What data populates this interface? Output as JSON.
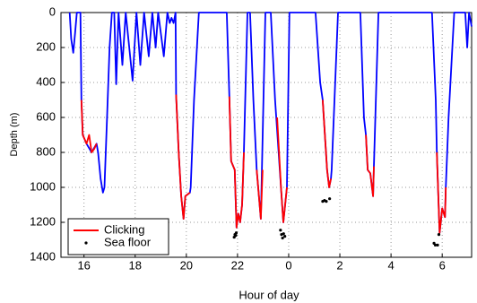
{
  "chart_data": {
    "type": "line",
    "x_label": "Hour of day",
    "y_label": "Depth (m)",
    "xlim": [
      15.1,
      31.15
    ],
    "xticks": [
      16,
      18,
      20,
      22,
      {
        "value": 24,
        "label": "0"
      },
      {
        "value": 26,
        "label": "2"
      },
      {
        "value": 28,
        "label": "4"
      },
      {
        "value": 30,
        "label": "6"
      }
    ],
    "ylim": [
      0,
      1400
    ],
    "yticks": [
      0,
      200,
      400,
      600,
      800,
      1000,
      1200,
      1400
    ],
    "y_inverted": true,
    "grid": true,
    "legend": "lower left",
    "series": [
      {
        "color": "#0000ff",
        "x": [
          15.44,
          15.5,
          15.58,
          15.65,
          15.72,
          15.86,
          15.9,
          15.95,
          16.1,
          16.3,
          16.49,
          16.55,
          16.65,
          16.74,
          16.8,
          16.9,
          17.0,
          17.09,
          17.18,
          17.26,
          17.35,
          17.5,
          17.63,
          17.9,
          18.05,
          18.2,
          18.35,
          18.53,
          18.67,
          18.8,
          18.9,
          19.12,
          19.26,
          19.35,
          19.42,
          19.5,
          19.58,
          19.6,
          19.7,
          19.8,
          19.89,
          19.96,
          20.14,
          20.17,
          20.3,
          20.49,
          21.58,
          21.68,
          21.75,
          21.89,
          21.96,
          22.03,
          22.1,
          22.18,
          22.25,
          22.39,
          22.49,
          22.62,
          22.75,
          22.91,
          23.0,
          23.09,
          23.3,
          23.47,
          23.79,
          23.93,
          24.03,
          25.05,
          25.23,
          25.33,
          25.5,
          25.58,
          25.65,
          25.68,
          25.93,
          26.8,
          26.94,
          27.02,
          27.09,
          27.19,
          27.3,
          27.33,
          27.51,
          29.6,
          29.75,
          29.79,
          29.86,
          29.9,
          30.0,
          30.11,
          30.14,
          30.25,
          30.47,
          30.9,
          30.98,
          31.05,
          31.15
        ],
        "values": [
          0,
          150,
          230,
          120,
          0,
          0,
          500,
          700,
          750,
          800,
          750,
          800,
          950,
          1030,
          1000,
          600,
          200,
          0,
          0,
          410,
          0,
          300,
          0,
          390,
          0,
          300,
          0,
          250,
          0,
          200,
          0,
          250,
          0,
          60,
          30,
          60,
          0,
          470,
          800,
          1050,
          1180,
          1050,
          1030,
          1000,
          500,
          0,
          0,
          480,
          850,
          900,
          1230,
          1150,
          1200,
          1100,
          800,
          0,
          0,
          500,
          900,
          1180,
          600,
          0,
          0,
          500,
          1200,
          1000,
          0,
          0,
          400,
          500,
          900,
          1000,
          950,
          900,
          0,
          0,
          600,
          700,
          900,
          920,
          1050,
          880,
          0,
          0,
          500,
          800,
          1100,
          1260,
          1120,
          1170,
          1000,
          600,
          0,
          0,
          200,
          0,
          80
        ]
      },
      {
        "name": "Clicking",
        "color": "#ff0000",
        "x": [
          15.9,
          15.95,
          16.1,
          16.2,
          16.3,
          16.4,
          16.49,
          null,
          19.6,
          19.7,
          19.8,
          19.89,
          19.96,
          20.14,
          null,
          21.68,
          21.75,
          21.89,
          21.96,
          22.03,
          22.1,
          22.18,
          22.25,
          null,
          22.75,
          22.91,
          22.98,
          null,
          23.55,
          23.7,
          23.79,
          23.86,
          23.93,
          null,
          25.33,
          25.5,
          25.58,
          25.65,
          null,
          27.02,
          27.09,
          27.19,
          27.3,
          27.33,
          null,
          29.79,
          29.86,
          29.9,
          30.0,
          30.11,
          30.14
        ],
        "values": [
          500,
          700,
          750,
          700,
          800,
          780,
          750,
          null,
          470,
          800,
          1050,
          1180,
          1050,
          1030,
          null,
          480,
          850,
          900,
          1230,
          1150,
          1200,
          1100,
          800,
          null,
          900,
          1180,
          900,
          null,
          600,
          1000,
          1200,
          1100,
          1000,
          null,
          500,
          900,
          1000,
          950,
          null,
          700,
          900,
          920,
          1050,
          880,
          null,
          800,
          1100,
          1260,
          1120,
          1170,
          1000
        ]
      },
      {
        "name": "Sea floor",
        "color": "#000000",
        "type": "scatter",
        "x": [
          21.87,
          21.9,
          21.93,
          21.95,
          23.68,
          23.72,
          23.76,
          23.8,
          23.85,
          25.33,
          25.4,
          25.47,
          25.6,
          29.68,
          29.73,
          29.82,
          29.87
        ],
        "values": [
          1285,
          1270,
          1275,
          1260,
          1245,
          1270,
          1290,
          1265,
          1280,
          1080,
          1075,
          1080,
          1065,
          1320,
          1330,
          1330,
          1270
        ]
      }
    ]
  }
}
